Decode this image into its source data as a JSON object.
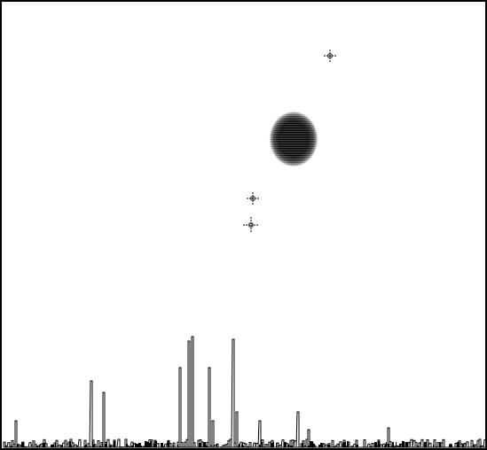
{
  "canvas": {
    "background": "#ffffff",
    "ink": "#000000"
  },
  "blob": {
    "color": "#000000",
    "halo": "#888888"
  },
  "markers": [
    {
      "name": "crosshair-marker-top",
      "icon": "crosshair-icon"
    },
    {
      "name": "crosshair-marker-middle",
      "icon": "crosshair-icon"
    },
    {
      "name": "crosshair-marker-lower",
      "icon": "crosshair-icon"
    }
  ],
  "histogram": {
    "style": "outline-bars",
    "color": "#000000"
  }
}
